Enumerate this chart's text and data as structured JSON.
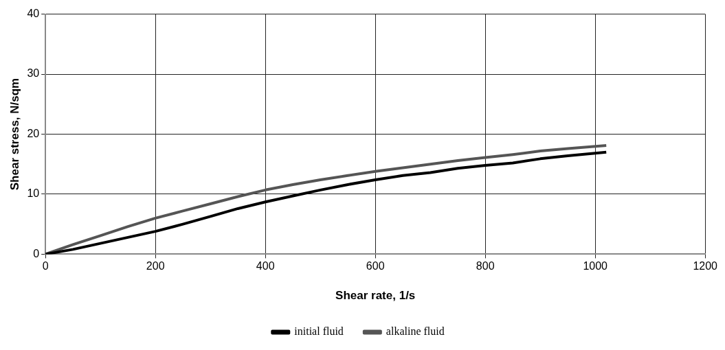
{
  "chart_data": {
    "type": "line",
    "xlabel": "Shear rate, 1/s",
    "ylabel": "Shear stress, N/sqm",
    "xlim": [
      0,
      1200
    ],
    "xticks": [
      0,
      200,
      400,
      600,
      800,
      1000,
      1200
    ],
    "ylim": [
      0,
      40
    ],
    "yticks": [
      0,
      10,
      20,
      30,
      40
    ],
    "grid": true,
    "legend": "bottom",
    "marker": "none",
    "line_style": "solid",
    "x": [
      0,
      50,
      100,
      150,
      200,
      250,
      300,
      350,
      400,
      450,
      500,
      550,
      600,
      650,
      700,
      750,
      800,
      850,
      900,
      950,
      1020
    ],
    "series": [
      {
        "name": "initial fluid",
        "color": "#000000",
        "values": [
          0,
          0.8,
          1.8,
          2.8,
          3.8,
          5,
          6.3,
          7.6,
          8.7,
          9.7,
          10.7,
          11.6,
          12.4,
          13.1,
          13.6,
          14.3,
          14.8,
          15.2,
          15.9,
          16.4,
          17.0
        ]
      },
      {
        "name": "alkaline fluid",
        "color": "#555555",
        "values": [
          0,
          1.6,
          3.1,
          4.6,
          6.0,
          7.2,
          8.4,
          9.6,
          10.7,
          11.6,
          12.4,
          13.1,
          13.8,
          14.4,
          15,
          15.6,
          16.1,
          16.6,
          17.2,
          17.6,
          18.1
        ]
      }
    ]
  }
}
